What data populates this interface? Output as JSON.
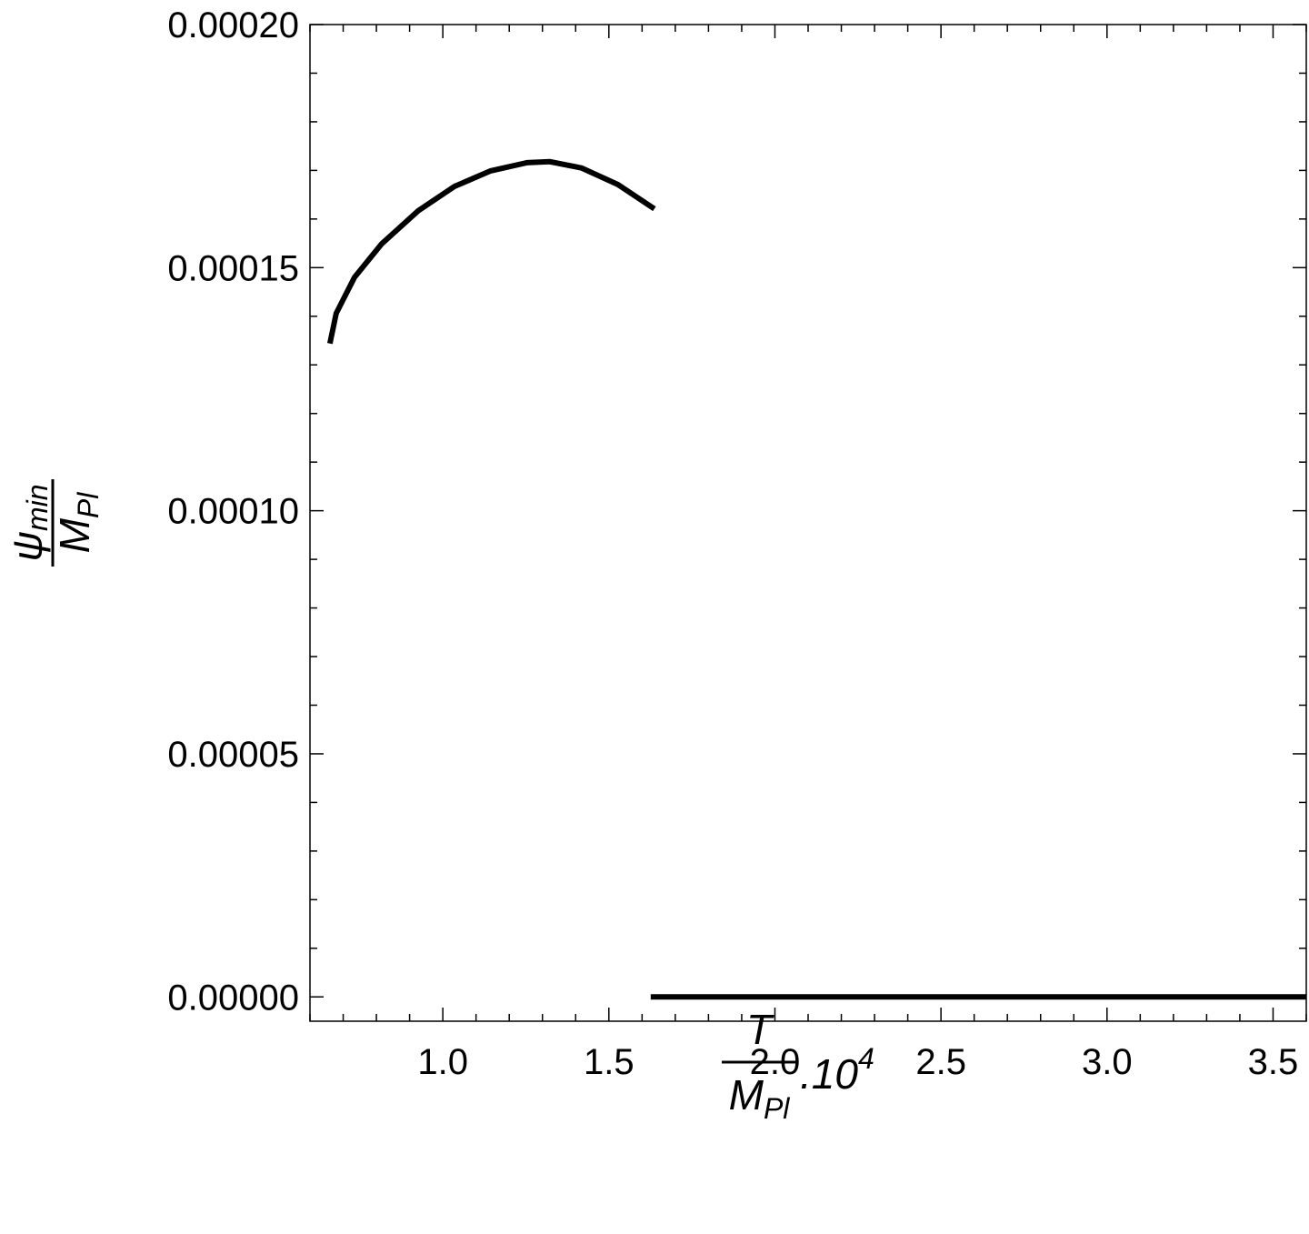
{
  "chart_data": {
    "type": "line",
    "x_label": {
      "numerator": "T",
      "denominator": "M",
      "denominator_sub": "Pl",
      "suffix": ".10",
      "suffix_sup": "4"
    },
    "y_label": {
      "numerator": "ψ",
      "numerator_sub": "min",
      "denominator": "M",
      "denominator_sub": "Pl"
    },
    "series": [
      {
        "color": "#000000",
        "x": [
          0.66,
          0.679,
          0.734,
          0.816,
          0.926,
          1.035,
          1.144,
          1.254,
          1.322,
          1.418,
          1.527,
          1.637
        ],
        "values": [
          0.0001344,
          0.0001406,
          0.000148,
          0.0001549,
          0.0001617,
          0.0001667,
          0.0001699,
          0.0001716,
          0.0001718,
          0.0001705,
          0.0001671,
          0.0001621
        ]
      },
      {
        "color": "#000000",
        "x": [
          1.626,
          3.6
        ],
        "values": [
          0,
          0
        ]
      }
    ],
    "xlim": [
      0.6,
      3.6
    ],
    "xticks": [
      {
        "value": 1,
        "label": "1.0"
      },
      1.5,
      {
        "value": 2,
        "label": "2.0"
      },
      2.5,
      {
        "value": 3,
        "label": "3.0"
      },
      3.5
    ],
    "ylim": [
      -5e-06,
      0.0002
    ],
    "yticks": [
      {
        "value": 0,
        "label": "0.00000"
      },
      {
        "value": 5e-05,
        "label": "0.00005"
      },
      {
        "value": 0.0001,
        "label": "0.00010"
      },
      {
        "value": 0.00015,
        "label": "0.00015"
      },
      {
        "value": 0.0002,
        "label": "0.00020"
      }
    ],
    "grid": false
  }
}
